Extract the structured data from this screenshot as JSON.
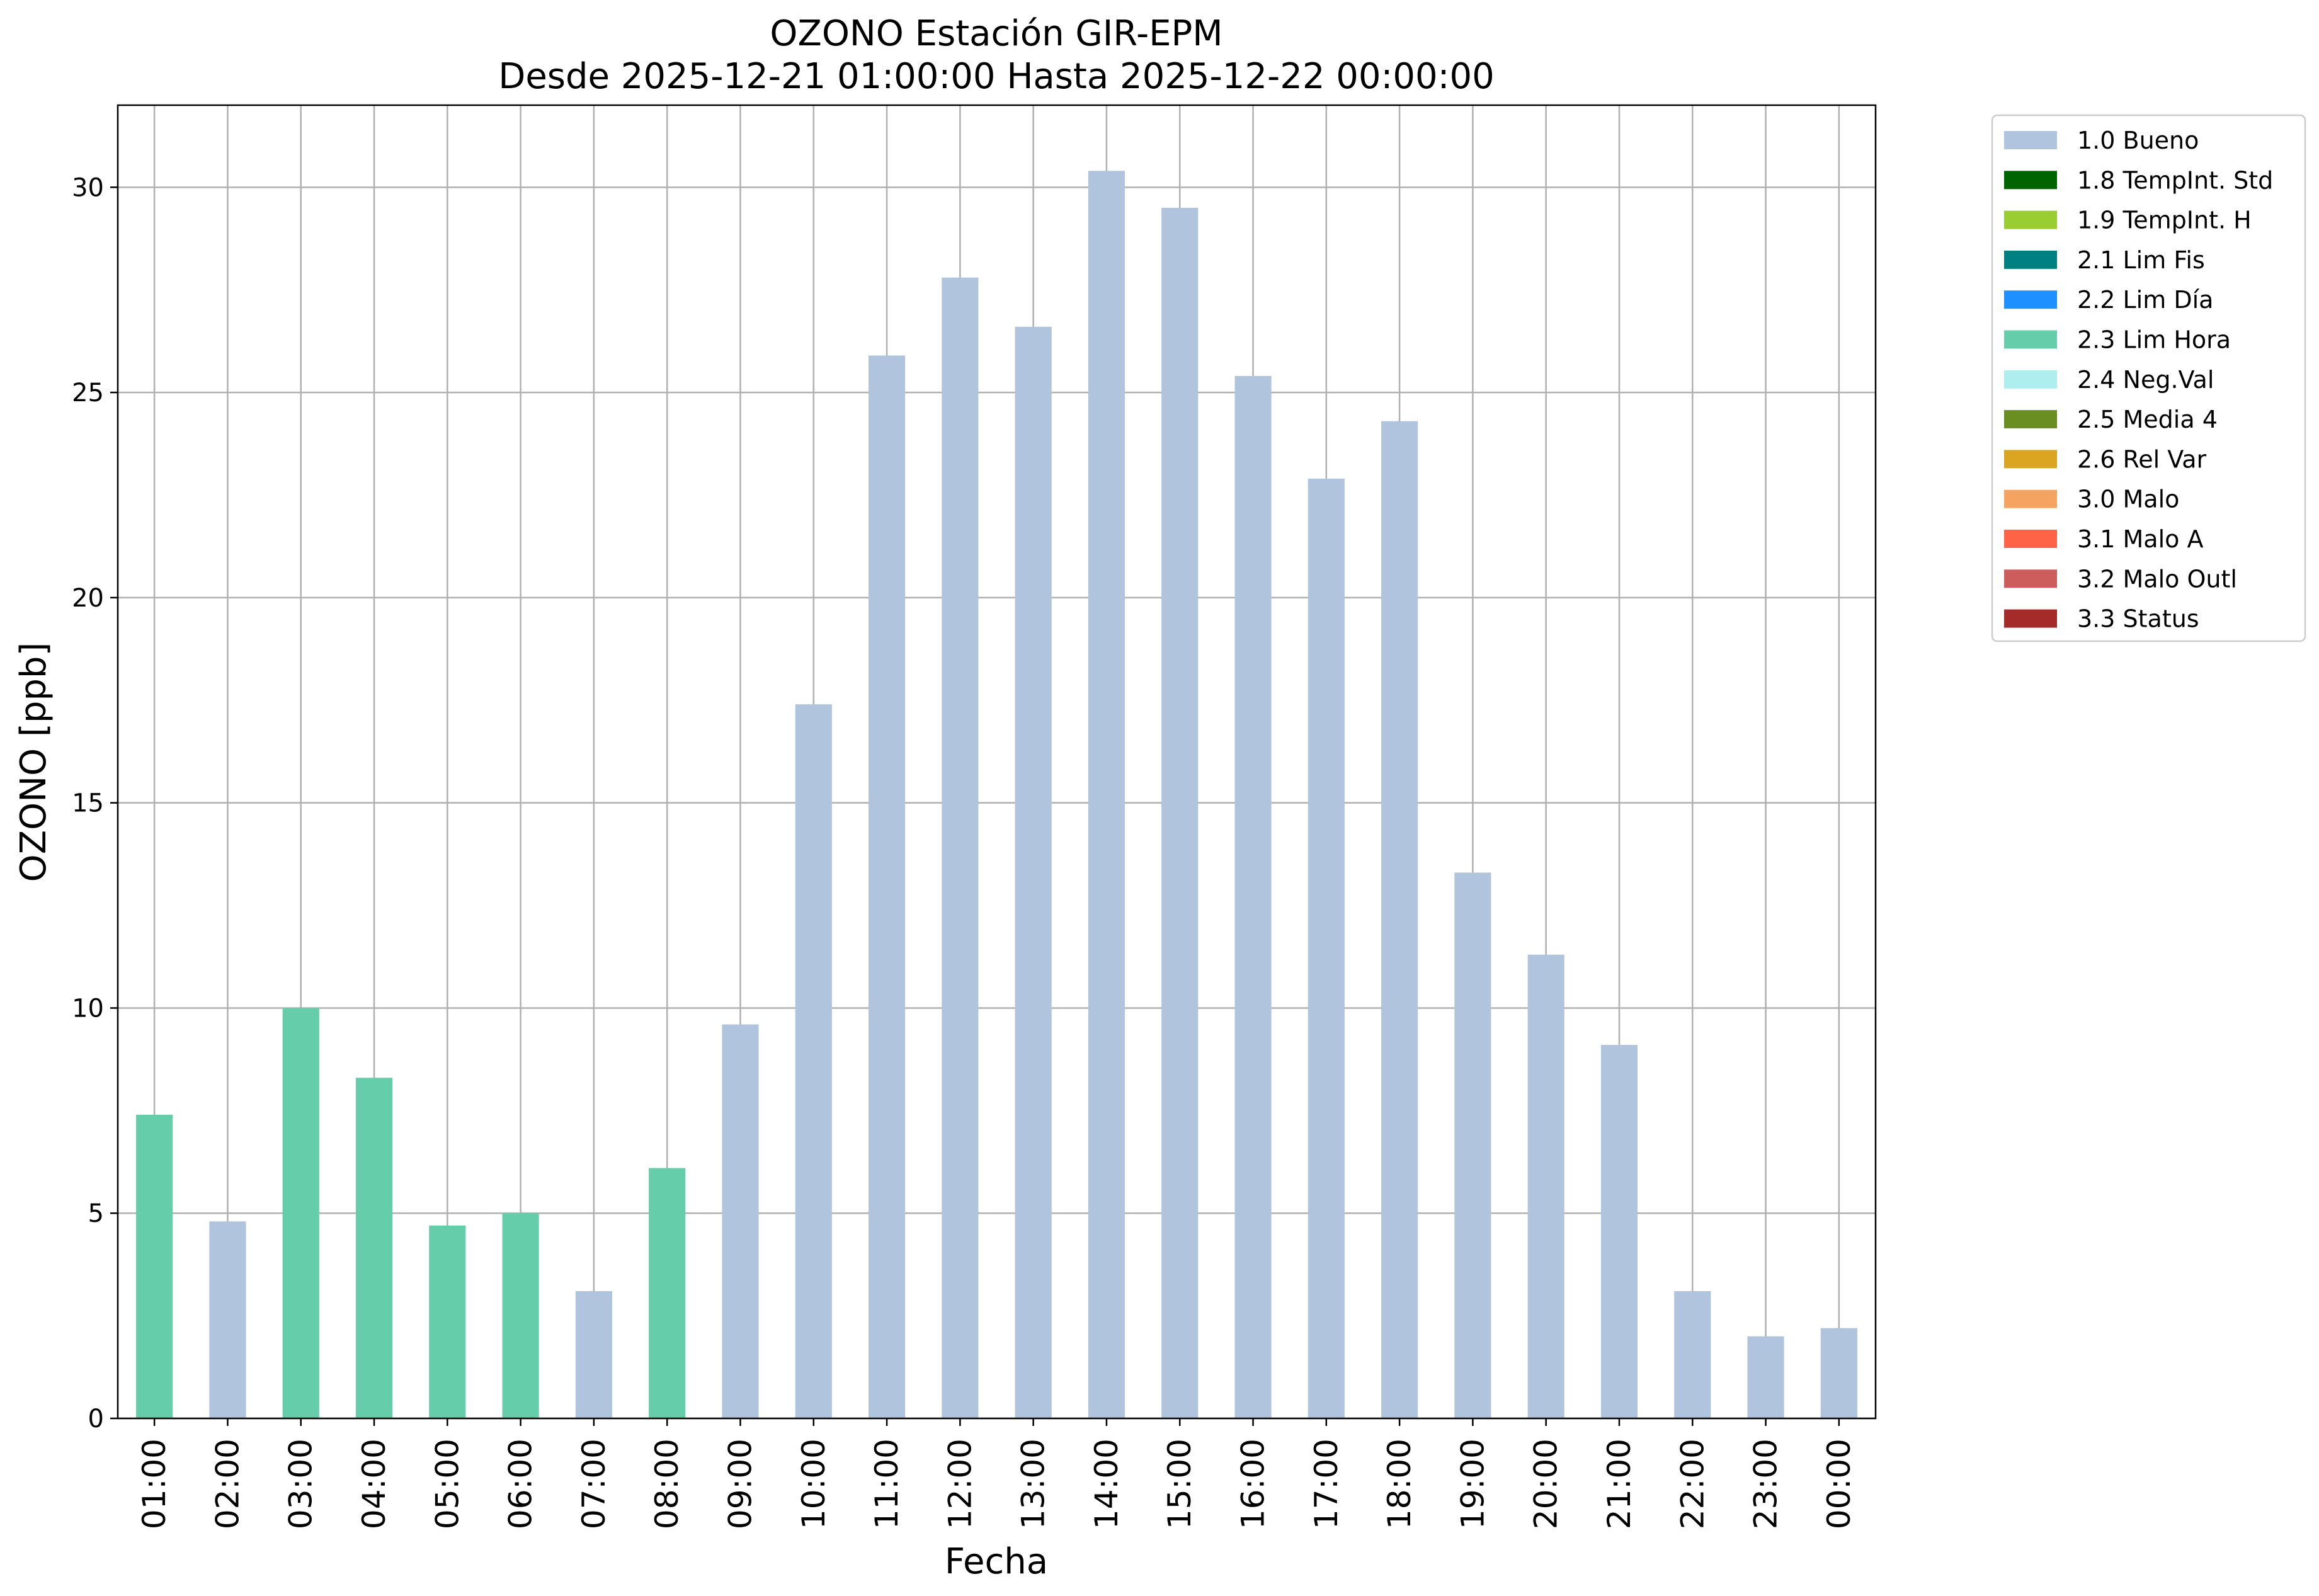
{
  "chart_data": {
    "type": "bar",
    "title": "OZONO Estación GIR-EPM",
    "subtitle": "Desde 2025-12-21 01:00:00 Hasta 2025-12-22 00:00:00",
    "xlabel": "Fecha",
    "ylabel": "OZONO [ppb]",
    "ylim": [
      0,
      32
    ],
    "yticks": [
      0,
      5,
      10,
      15,
      20,
      25,
      30
    ],
    "grid": true,
    "legend_position": "outside-top-right",
    "categories": [
      "01:00",
      "02:00",
      "03:00",
      "04:00",
      "05:00",
      "06:00",
      "07:00",
      "08:00",
      "09:00",
      "10:00",
      "11:00",
      "12:00",
      "13:00",
      "14:00",
      "15:00",
      "16:00",
      "17:00",
      "18:00",
      "19:00",
      "20:00",
      "21:00",
      "22:00",
      "23:00",
      "00:00"
    ],
    "values": [
      7.4,
      4.8,
      10.0,
      8.3,
      4.7,
      5.0,
      3.1,
      6.1,
      9.6,
      17.4,
      25.9,
      27.8,
      26.6,
      30.4,
      29.5,
      25.4,
      22.9,
      24.3,
      13.3,
      11.3,
      9.1,
      3.1,
      2.0,
      2.2
    ],
    "flags": [
      "2.3 Lim Hora",
      "1.0 Bueno",
      "2.3 Lim Hora",
      "2.3 Lim Hora",
      "2.3 Lim Hora",
      "2.3 Lim Hora",
      "1.0 Bueno",
      "2.3 Lim Hora",
      "1.0 Bueno",
      "1.0 Bueno",
      "1.0 Bueno",
      "1.0 Bueno",
      "1.0 Bueno",
      "1.0 Bueno",
      "1.0 Bueno",
      "1.0 Bueno",
      "1.0 Bueno",
      "1.0 Bueno",
      "1.0 Bueno",
      "1.0 Bueno",
      "1.0 Bueno",
      "1.0 Bueno",
      "1.0 Bueno",
      "1.0 Bueno"
    ],
    "legend": [
      {
        "label": "1.0 Bueno",
        "color": "#b0c4de"
      },
      {
        "label": "1.8 TempInt. Std",
        "color": "#006400"
      },
      {
        "label": "1.9 TempInt. H",
        "color": "#9acd32"
      },
      {
        "label": "2.1 Lim Fis",
        "color": "#008080"
      },
      {
        "label": "2.2 Lim Día",
        "color": "#1e90ff"
      },
      {
        "label": "2.3 Lim Hora",
        "color": "#66cdaa"
      },
      {
        "label": "2.4 Neg.Val",
        "color": "#afeeee"
      },
      {
        "label": "2.5 Media 4",
        "color": "#6b8e23"
      },
      {
        "label": "2.6 Rel Var",
        "color": "#daa520"
      },
      {
        "label": "3.0 Malo",
        "color": "#f4a460"
      },
      {
        "label": "3.1 Malo A",
        "color": "#ff6347"
      },
      {
        "label": "3.2 Malo Outl",
        "color": "#cd5c5c"
      },
      {
        "label": "3.3 Status",
        "color": "#a52a2a"
      }
    ]
  }
}
